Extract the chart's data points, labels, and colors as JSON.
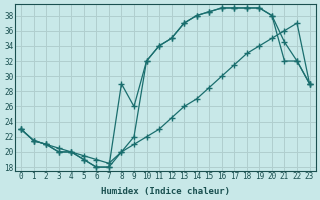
{
  "xlabel": "Humidex (Indice chaleur)",
  "background_color": "#c8e8e8",
  "grid_color": "#b0cece",
  "line_color": "#1a6e6e",
  "xlim": [
    -0.5,
    23.5
  ],
  "ylim": [
    17.5,
    39.5
  ],
  "yticks": [
    18,
    20,
    22,
    24,
    26,
    28,
    30,
    32,
    34,
    36,
    38
  ],
  "xticks": [
    0,
    1,
    2,
    3,
    4,
    5,
    6,
    7,
    8,
    9,
    10,
    11,
    12,
    13,
    14,
    15,
    16,
    17,
    18,
    19,
    20,
    21,
    22,
    23
  ],
  "line1_x": [
    0,
    1,
    2,
    3,
    4,
    5,
    6,
    7,
    8,
    9,
    10,
    11,
    12,
    13,
    14,
    15,
    16,
    17,
    18,
    19,
    20,
    21,
    22,
    23
  ],
  "line1_y": [
    23,
    21.5,
    21,
    20.5,
    20,
    19.5,
    19,
    18.5,
    20,
    21,
    22,
    23,
    24.5,
    26,
    27,
    28.5,
    30,
    31.5,
    33,
    34,
    35,
    36,
    37,
    29
  ],
  "line2_x": [
    0,
    1,
    2,
    3,
    4,
    5,
    6,
    7,
    8,
    9,
    10,
    11,
    12,
    13,
    14,
    15,
    16,
    17,
    18,
    19,
    20,
    21,
    22,
    23
  ],
  "line2_y": [
    23,
    21.5,
    21,
    20,
    20,
    19,
    18,
    18,
    20,
    22,
    32,
    34,
    35,
    37,
    38,
    38.5,
    39,
    39,
    39,
    39,
    38,
    34.5,
    32,
    29
  ],
  "line3_x": [
    0,
    1,
    2,
    3,
    4,
    5,
    6,
    7,
    8,
    9,
    10,
    11,
    12,
    13,
    14,
    15,
    16,
    17,
    18,
    19,
    20,
    21,
    22,
    23
  ],
  "line3_y": [
    23,
    21.5,
    21,
    20,
    20,
    19,
    18,
    18,
    29,
    26,
    32,
    34,
    35,
    37,
    38,
    38.5,
    39,
    39,
    39,
    39,
    38,
    32,
    32,
    29
  ]
}
